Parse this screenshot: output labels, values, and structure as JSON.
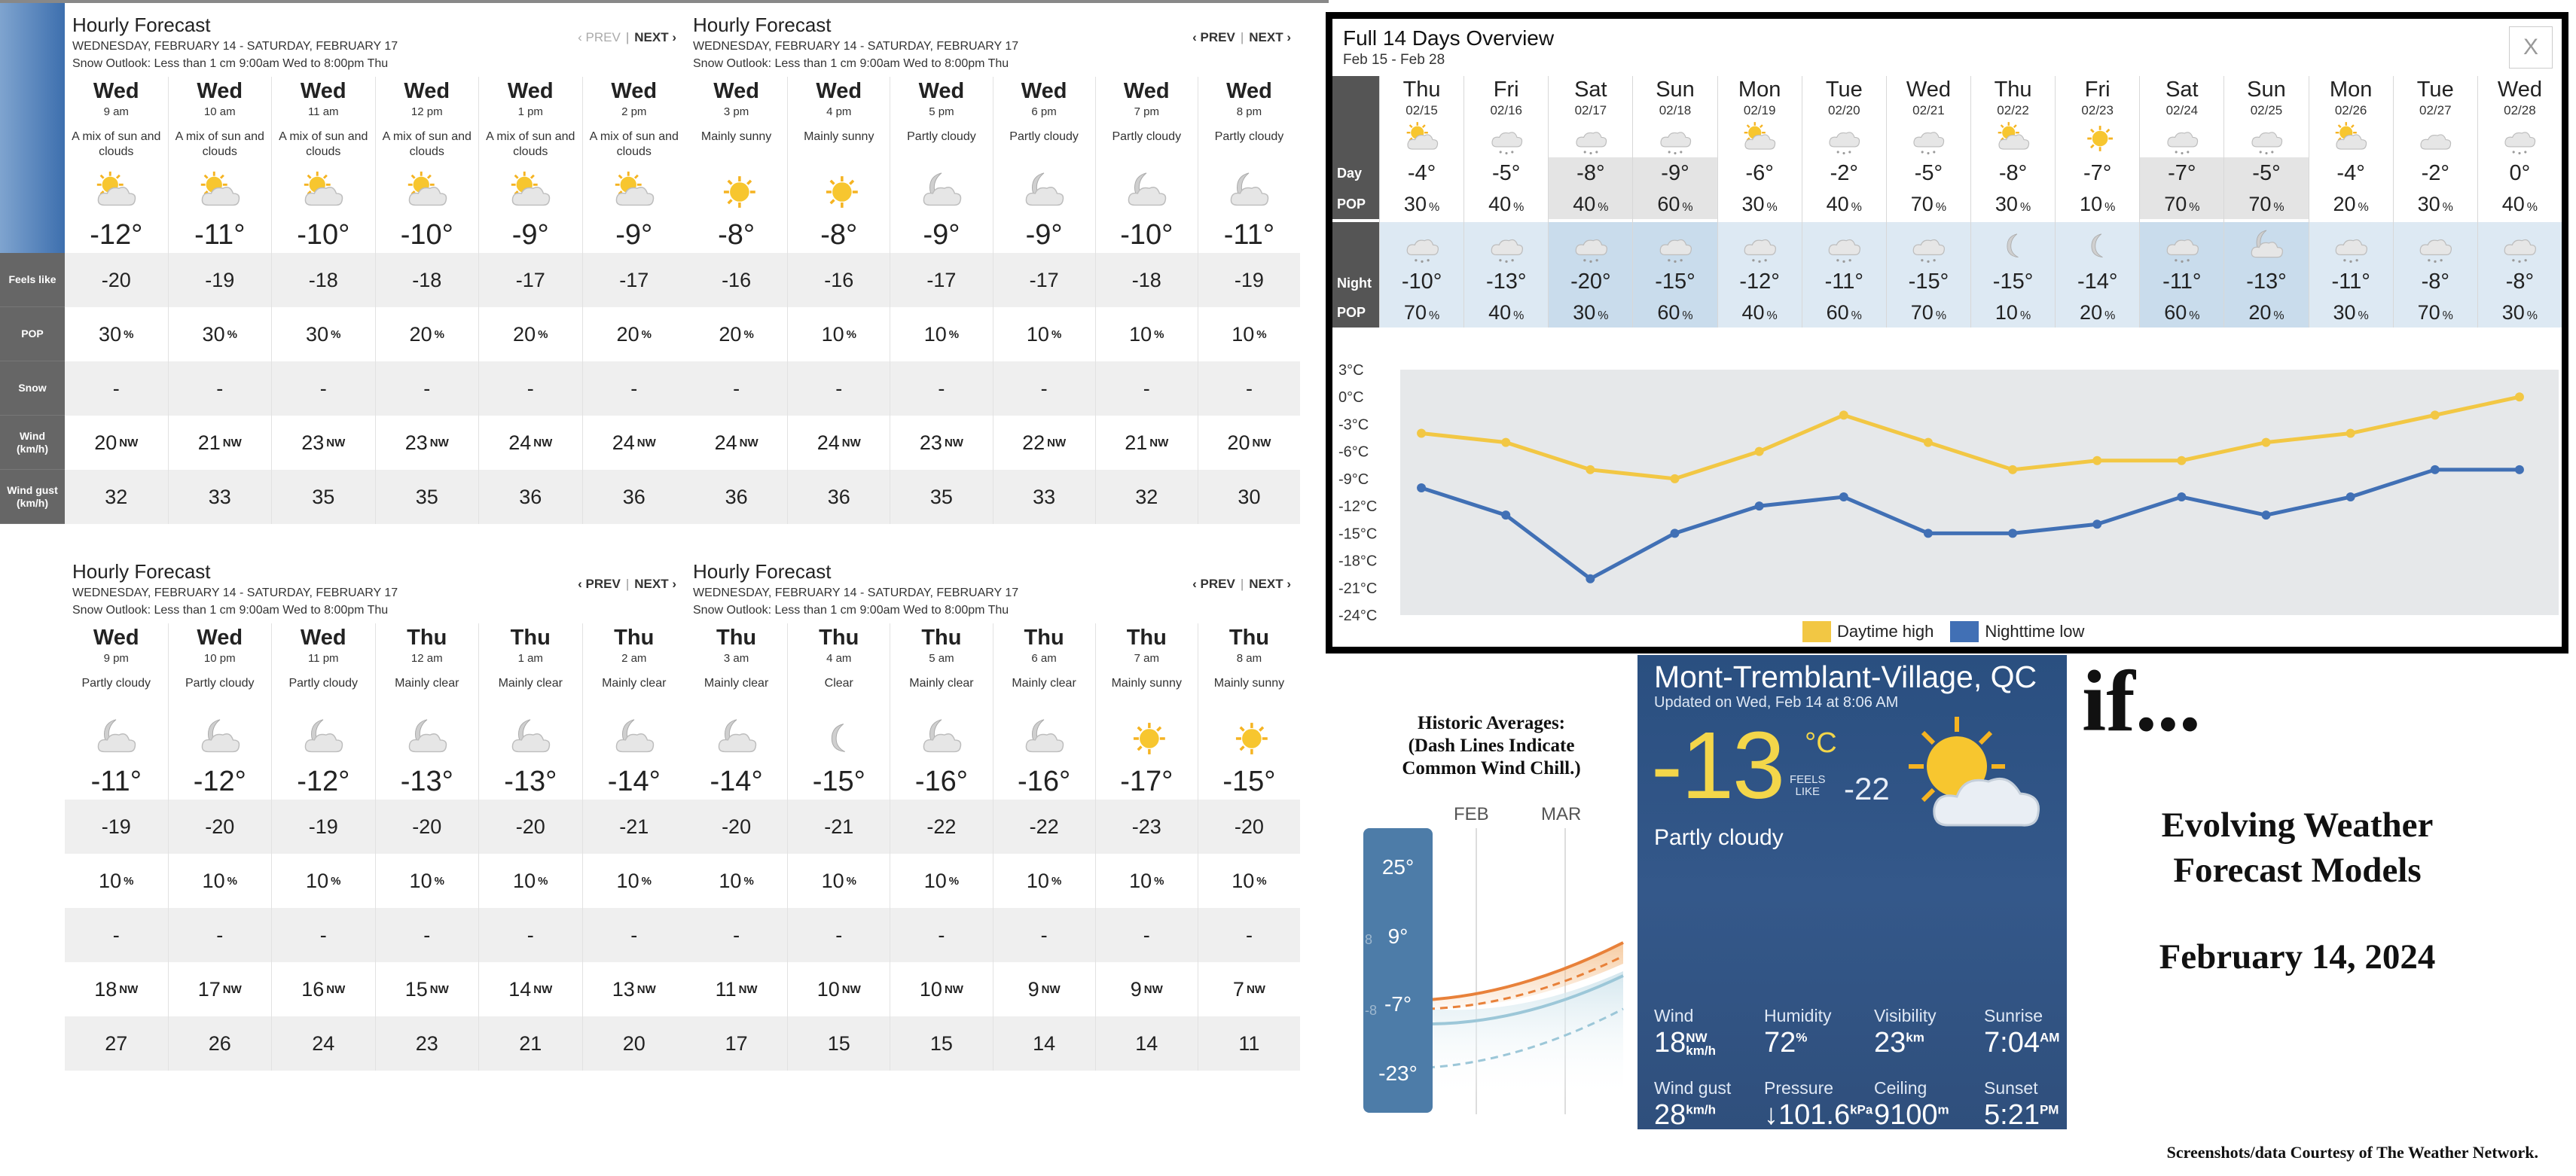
{
  "panels": [
    {
      "title": "Hourly Forecast",
      "range": "WEDNESDAY, FEBRUARY 14 - SATURDAY, FEBRUARY 17",
      "snow_outlook": "Snow Outlook: Less than 1 cm 9:00am Wed to 8:00pm Thu",
      "prev": "‹ PREV",
      "next": "NEXT ›",
      "prev_disabled": true,
      "hours": [
        {
          "day": "Wed",
          "time": "9 am",
          "cond": "A mix of sun and clouds",
          "icon": "sun-cloud-icon",
          "temp": "-12°",
          "feels": "-20",
          "pop": "30",
          "snow": "-",
          "wind": "20",
          "dir": "NW",
          "gust": "32"
        },
        {
          "day": "Wed",
          "time": "10 am",
          "cond": "A mix of sun and clouds",
          "icon": "sun-cloud-icon",
          "temp": "-11°",
          "feels": "-19",
          "pop": "30",
          "snow": "-",
          "wind": "21",
          "dir": "NW",
          "gust": "33"
        },
        {
          "day": "Wed",
          "time": "11 am",
          "cond": "A mix of sun and clouds",
          "icon": "sun-cloud-icon",
          "temp": "-10°",
          "feels": "-18",
          "pop": "30",
          "snow": "-",
          "wind": "23",
          "dir": "NW",
          "gust": "35"
        },
        {
          "day": "Wed",
          "time": "12 pm",
          "cond": "A mix of sun and clouds",
          "icon": "sun-cloud-icon",
          "temp": "-10°",
          "feels": "-18",
          "pop": "20",
          "snow": "-",
          "wind": "23",
          "dir": "NW",
          "gust": "35"
        },
        {
          "day": "Wed",
          "time": "1 pm",
          "cond": "A mix of sun and clouds",
          "icon": "sun-cloud-icon",
          "temp": "-9°",
          "feels": "-17",
          "pop": "20",
          "snow": "-",
          "wind": "24",
          "dir": "NW",
          "gust": "36"
        },
        {
          "day": "Wed",
          "time": "2 pm",
          "cond": "A mix of sun and clouds",
          "icon": "sun-cloud-icon",
          "temp": "-9°",
          "feels": "-17",
          "pop": "20",
          "snow": "-",
          "wind": "24",
          "dir": "NW",
          "gust": "36"
        }
      ]
    },
    {
      "title": "Hourly Forecast",
      "range": "WEDNESDAY, FEBRUARY 14 - SATURDAY, FEBRUARY 17",
      "snow_outlook": "Snow Outlook: Less than 1 cm 9:00am Wed to 8:00pm Thu",
      "prev": "‹ PREV",
      "next": "NEXT ›",
      "prev_disabled": false,
      "hours": [
        {
          "day": "Wed",
          "time": "3 pm",
          "cond": "Mainly sunny",
          "icon": "sun-icon",
          "temp": "-8°",
          "feels": "-16",
          "pop": "20",
          "snow": "-",
          "wind": "24",
          "dir": "NW",
          "gust": "36"
        },
        {
          "day": "Wed",
          "time": "4 pm",
          "cond": "Mainly sunny",
          "icon": "sun-icon",
          "temp": "-8°",
          "feels": "-16",
          "pop": "10",
          "snow": "-",
          "wind": "24",
          "dir": "NW",
          "gust": "36"
        },
        {
          "day": "Wed",
          "time": "5 pm",
          "cond": "Partly cloudy",
          "icon": "moon-cloud-icon",
          "temp": "-9°",
          "feels": "-17",
          "pop": "10",
          "snow": "-",
          "wind": "23",
          "dir": "NW",
          "gust": "35"
        },
        {
          "day": "Wed",
          "time": "6 pm",
          "cond": "Partly cloudy",
          "icon": "moon-cloud-icon",
          "temp": "-9°",
          "feels": "-17",
          "pop": "10",
          "snow": "-",
          "wind": "22",
          "dir": "NW",
          "gust": "33"
        },
        {
          "day": "Wed",
          "time": "7 pm",
          "cond": "Partly cloudy",
          "icon": "moon-cloud-icon",
          "temp": "-10°",
          "feels": "-18",
          "pop": "10",
          "snow": "-",
          "wind": "21",
          "dir": "NW",
          "gust": "32"
        },
        {
          "day": "Wed",
          "time": "8 pm",
          "cond": "Partly cloudy",
          "icon": "moon-cloud-icon",
          "temp": "-11°",
          "feels": "-19",
          "pop": "10",
          "snow": "-",
          "wind": "20",
          "dir": "NW",
          "gust": "30"
        }
      ]
    },
    {
      "title": "Hourly Forecast",
      "range": "WEDNESDAY, FEBRUARY 14 - SATURDAY, FEBRUARY 17",
      "snow_outlook": "Snow Outlook: Less than 1 cm 9:00am Wed to 8:00pm Thu",
      "prev": "‹ PREV",
      "next": "NEXT ›",
      "prev_disabled": false,
      "hours": [
        {
          "day": "Wed",
          "time": "9 pm",
          "cond": "Partly cloudy",
          "icon": "moon-cloud-icon",
          "temp": "-11°",
          "feels": "-19",
          "pop": "10",
          "snow": "-",
          "wind": "18",
          "dir": "NW",
          "gust": "27"
        },
        {
          "day": "Wed",
          "time": "10 pm",
          "cond": "Partly cloudy",
          "icon": "moon-cloud-icon",
          "temp": "-12°",
          "feels": "-20",
          "pop": "10",
          "snow": "-",
          "wind": "17",
          "dir": "NW",
          "gust": "26"
        },
        {
          "day": "Wed",
          "time": "11 pm",
          "cond": "Partly cloudy",
          "icon": "moon-cloud-icon",
          "temp": "-12°",
          "feels": "-19",
          "pop": "10",
          "snow": "-",
          "wind": "16",
          "dir": "NW",
          "gust": "24"
        },
        {
          "day": "Thu",
          "time": "12 am",
          "cond": "Mainly clear",
          "icon": "moon-cloud-icon",
          "temp": "-13°",
          "feels": "-20",
          "pop": "10",
          "snow": "-",
          "wind": "15",
          "dir": "NW",
          "gust": "23"
        },
        {
          "day": "Thu",
          "time": "1 am",
          "cond": "Mainly clear",
          "icon": "moon-cloud-icon",
          "temp": "-13°",
          "feels": "-20",
          "pop": "10",
          "snow": "-",
          "wind": "14",
          "dir": "NW",
          "gust": "21"
        },
        {
          "day": "Thu",
          "time": "2 am",
          "cond": "Mainly clear",
          "icon": "moon-cloud-icon",
          "temp": "-14°",
          "feels": "-21",
          "pop": "10",
          "snow": "-",
          "wind": "13",
          "dir": "NW",
          "gust": "20"
        }
      ]
    },
    {
      "title": "Hourly Forecast",
      "range": "WEDNESDAY, FEBRUARY 14 - SATURDAY, FEBRUARY 17",
      "snow_outlook": "Snow Outlook: Less than 1 cm 9:00am Wed to 8:00pm Thu",
      "prev": "‹ PREV",
      "next": "NEXT ›",
      "prev_disabled": false,
      "hours": [
        {
          "day": "Thu",
          "time": "3 am",
          "cond": "Mainly clear",
          "icon": "moon-cloud-icon",
          "temp": "-14°",
          "feels": "-20",
          "pop": "10",
          "snow": "-",
          "wind": "11",
          "dir": "NW",
          "gust": "17"
        },
        {
          "day": "Thu",
          "time": "4 am",
          "cond": "Clear",
          "icon": "moon-icon",
          "temp": "-15°",
          "feels": "-21",
          "pop": "10",
          "snow": "-",
          "wind": "10",
          "dir": "NW",
          "gust": "15"
        },
        {
          "day": "Thu",
          "time": "5 am",
          "cond": "Mainly clear",
          "icon": "moon-cloud-icon",
          "temp": "-16°",
          "feels": "-22",
          "pop": "10",
          "snow": "-",
          "wind": "10",
          "dir": "NW",
          "gust": "15"
        },
        {
          "day": "Thu",
          "time": "6 am",
          "cond": "Mainly clear",
          "icon": "moon-cloud-icon",
          "temp": "-16°",
          "feels": "-22",
          "pop": "10",
          "snow": "-",
          "wind": "9",
          "dir": "NW",
          "gust": "14"
        },
        {
          "day": "Thu",
          "time": "7 am",
          "cond": "Mainly sunny",
          "icon": "sun-icon",
          "temp": "-17°",
          "feels": "-23",
          "pop": "10",
          "snow": "-",
          "wind": "9",
          "dir": "NW",
          "gust": "14"
        },
        {
          "day": "Thu",
          "time": "8 am",
          "cond": "Mainly sunny",
          "icon": "sun-icon",
          "temp": "-15°",
          "feels": "-20",
          "pop": "10",
          "snow": "-",
          "wind": "7",
          "dir": "NW",
          "gust": "11"
        }
      ]
    }
  ],
  "row_labels": [
    "Feels like",
    "POP",
    "Snow",
    "Wind\n(km/h)",
    "Wind gust\n(km/h)"
  ],
  "pop_unit": "%",
  "overview": {
    "title": "Full 14 Days Overview",
    "range": "Feb 15 - Feb 28",
    "close": "X",
    "day_label": "Day",
    "pop_label": "POP",
    "night_label": "Night",
    "days": [
      {
        "day": "Thu",
        "date": "02/15",
        "icon": "sun-cloud-icon",
        "high": "-4°",
        "dpop": "30",
        "nicon": "snow-cloud-icon",
        "low": "-10°",
        "npop": "70"
      },
      {
        "day": "Fri",
        "date": "02/16",
        "icon": "snow-cloud-icon",
        "high": "-5°",
        "dpop": "40",
        "nicon": "snow-cloud-icon",
        "low": "-13°",
        "npop": "40"
      },
      {
        "day": "Sat",
        "date": "02/17",
        "icon": "snow-cloud-icon",
        "high": "-8°",
        "dpop": "40",
        "nicon": "snow-cloud-icon",
        "low": "-20°",
        "npop": "30"
      },
      {
        "day": "Sun",
        "date": "02/18",
        "icon": "snow-cloud-icon",
        "high": "-9°",
        "dpop": "60",
        "nicon": "snow-cloud-icon",
        "low": "-15°",
        "npop": "60"
      },
      {
        "day": "Mon",
        "date": "02/19",
        "icon": "sun-cloud-icon",
        "high": "-6°",
        "dpop": "30",
        "nicon": "snow-cloud-icon",
        "low": "-12°",
        "npop": "40"
      },
      {
        "day": "Tue",
        "date": "02/20",
        "icon": "snow-cloud-icon",
        "high": "-2°",
        "dpop": "40",
        "nicon": "snow-cloud-icon",
        "low": "-11°",
        "npop": "60"
      },
      {
        "day": "Wed",
        "date": "02/21",
        "icon": "snow-cloud-icon",
        "high": "-5°",
        "dpop": "70",
        "nicon": "snow-cloud-icon",
        "low": "-15°",
        "npop": "70"
      },
      {
        "day": "Thu",
        "date": "02/22",
        "icon": "sun-cloud-icon",
        "high": "-8°",
        "dpop": "30",
        "nicon": "moon-icon",
        "low": "-15°",
        "npop": "10"
      },
      {
        "day": "Fri",
        "date": "02/23",
        "icon": "sun-icon",
        "high": "-7°",
        "dpop": "10",
        "nicon": "moon-icon",
        "low": "-14°",
        "npop": "20"
      },
      {
        "day": "Sat",
        "date": "02/24",
        "icon": "snow-cloud-icon",
        "high": "-7°",
        "dpop": "70",
        "nicon": "snow-cloud-icon",
        "low": "-11°",
        "npop": "60"
      },
      {
        "day": "Sun",
        "date": "02/25",
        "icon": "snow-cloud-icon",
        "high": "-5°",
        "dpop": "70",
        "nicon": "moon-cloud-icon",
        "low": "-13°",
        "npop": "20"
      },
      {
        "day": "Mon",
        "date": "02/26",
        "icon": "sun-cloud-icon",
        "high": "-4°",
        "dpop": "20",
        "nicon": "snow-cloud-icon",
        "low": "-11°",
        "npop": "30"
      },
      {
        "day": "Tue",
        "date": "02/27",
        "icon": "cloud-icon",
        "high": "-2°",
        "dpop": "30",
        "nicon": "snow-cloud-icon",
        "low": "-8°",
        "npop": "70"
      },
      {
        "day": "Wed",
        "date": "02/28",
        "icon": "snow-cloud-icon",
        "high": "0°",
        "dpop": "40",
        "nicon": "snow-cloud-icon",
        "low": "-8°",
        "npop": "30"
      }
    ],
    "highlight_days": [
      2,
      3,
      9,
      10
    ]
  },
  "chart_data": {
    "type": "line",
    "title": "",
    "x": [
      "02/15",
      "02/16",
      "02/17",
      "02/18",
      "02/19",
      "02/20",
      "02/21",
      "02/22",
      "02/23",
      "02/24",
      "02/25",
      "02/26",
      "02/27",
      "02/28"
    ],
    "series": [
      {
        "name": "Daytime high",
        "color": "#f2c744",
        "values": [
          -4,
          -5,
          -8,
          -9,
          -6,
          -2,
          -5,
          -8,
          -7,
          -7,
          -5,
          -4,
          -2,
          0
        ]
      },
      {
        "name": "Nighttime low",
        "color": "#4170b5",
        "values": [
          -10,
          -13,
          -20,
          -15,
          -12,
          -11,
          -15,
          -15,
          -14,
          -11,
          -13,
          -11,
          -8,
          -8
        ]
      }
    ],
    "yticks": [
      "3°C",
      "0°C",
      "-3°C",
      "-6°C",
      "-9°C",
      "-12°C",
      "-15°C",
      "-18°C",
      "-21°C",
      "-24°C"
    ],
    "ylim": [
      -24,
      3
    ],
    "legend": "bottom"
  },
  "historic": {
    "title": "Historic Averages:\n(Dash Lines Indicate\nCommon Wind Chill.)",
    "months": [
      "FEB",
      "MAR"
    ],
    "ticks": [
      "25°",
      "9°",
      "-7°",
      "-23°"
    ],
    "faded_labels": [
      "8",
      "-8"
    ],
    "colors": {
      "high": "#e8813a",
      "low": "#9cc7d8"
    }
  },
  "current": {
    "city": "Mont-Tremblant-Village, QC",
    "updated": "Updated on Wed, Feb 14 at 8:06 AM",
    "temp": "-13",
    "unit": "°C",
    "feels_label": "FEELS\nLIKE",
    "feels": "-22",
    "icon": "sun-cloud-icon",
    "condition": "Partly cloudy",
    "stats": [
      {
        "label": "Wind",
        "value": "18",
        "unit": "NW\nkm/h"
      },
      {
        "label": "Humidity",
        "value": "72",
        "unit": "%"
      },
      {
        "label": "Visibility",
        "value": "23",
        "unit": "km"
      },
      {
        "label": "Sunrise",
        "value": "7:04",
        "unit": "AM"
      },
      {
        "label": "Wind gust",
        "value": "28",
        "unit": "km/h"
      },
      {
        "label": "Pressure",
        "value": "↓101.6",
        "unit": "kPa"
      },
      {
        "label": "Ceiling",
        "value": "9100",
        "unit": "m"
      },
      {
        "label": "Sunset",
        "value": "5:21",
        "unit": "PM"
      }
    ]
  },
  "caption": {
    "if": "if...",
    "line1": "Evolving Weather",
    "line2": "Forecast Models",
    "date": "February 14, 2024",
    "credit": "Screenshots/data Courtesy of The Weather Network."
  }
}
